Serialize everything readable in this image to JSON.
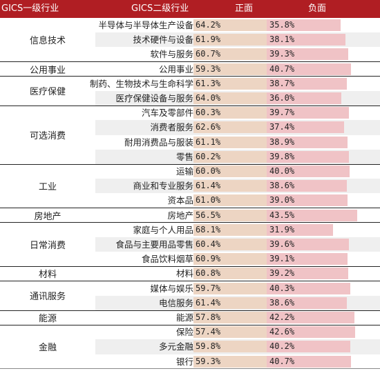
{
  "headers": {
    "level1": "GICS一级行业",
    "level2": "GICS二级行业",
    "positive": "正面",
    "negative": "负面"
  },
  "colors": {
    "header_bg": "#b01e23",
    "positive_bar": "#edd5c3",
    "negative_bar": "#f0c3c6"
  },
  "chart_data": {
    "type": "table",
    "columns": [
      "GICS一级行业",
      "GICS二级行业",
      "正面",
      "负面"
    ],
    "groups": [
      {
        "name": "信息技术",
        "rows": [
          {
            "name": "半导体与半导体生产设备",
            "pos": 64.2,
            "neg": 35.8,
            "pos_label": "64.2%",
            "neg_label": "35.8%"
          },
          {
            "name": "技术硬件与设备",
            "pos": 61.9,
            "neg": 38.1,
            "pos_label": "61.9%",
            "neg_label": "38.1%"
          },
          {
            "name": "软件与服务",
            "pos": 60.7,
            "neg": 39.3,
            "pos_label": "60.7%",
            "neg_label": "39.3%"
          }
        ]
      },
      {
        "name": "公用事业",
        "rows": [
          {
            "name": "公用事业",
            "pos": 59.3,
            "neg": 40.7,
            "pos_label": "59.3%",
            "neg_label": "40.7%"
          }
        ]
      },
      {
        "name": "医疗保健",
        "rows": [
          {
            "name": "制药、生物技术与生命科学",
            "pos": 61.3,
            "neg": 38.7,
            "pos_label": "61.3%",
            "neg_label": "38.7%"
          },
          {
            "name": "医疗保健设备与服务",
            "pos": 64.0,
            "neg": 36.0,
            "pos_label": "64.0%",
            "neg_label": "36.0%"
          }
        ]
      },
      {
        "name": "可选消费",
        "rows": [
          {
            "name": "汽车及零部件",
            "pos": 60.3,
            "neg": 39.7,
            "pos_label": "60.3%",
            "neg_label": "39.7%"
          },
          {
            "name": "消费者服务",
            "pos": 62.6,
            "neg": 37.4,
            "pos_label": "62.6%",
            "neg_label": "37.4%"
          },
          {
            "name": "耐用消费品与服装",
            "pos": 61.1,
            "neg": 38.9,
            "pos_label": "61.1%",
            "neg_label": "38.9%"
          },
          {
            "name": "零售",
            "pos": 60.2,
            "neg": 39.8,
            "pos_label": "60.2%",
            "neg_label": "39.8%"
          }
        ]
      },
      {
        "name": "工业",
        "rows": [
          {
            "name": "运输",
            "pos": 60.0,
            "neg": 40.0,
            "pos_label": "60.0%",
            "neg_label": "40.0%"
          },
          {
            "name": "商业和专业服务",
            "pos": 61.4,
            "neg": 38.6,
            "pos_label": "61.4%",
            "neg_label": "38.6%"
          },
          {
            "name": "资本品",
            "pos": 61.0,
            "neg": 39.0,
            "pos_label": "61.0%",
            "neg_label": "39.0%"
          }
        ]
      },
      {
        "name": "房地产",
        "rows": [
          {
            "name": "房地产",
            "pos": 56.5,
            "neg": 43.5,
            "pos_label": "56.5%",
            "neg_label": "43.5%"
          }
        ]
      },
      {
        "name": "日常消费",
        "rows": [
          {
            "name": "家庭与个人用品",
            "pos": 68.1,
            "neg": 31.9,
            "pos_label": "68.1%",
            "neg_label": "31.9%"
          },
          {
            "name": "食品与主要用品零售",
            "pos": 60.4,
            "neg": 39.6,
            "pos_label": "60.4%",
            "neg_label": "39.6%"
          },
          {
            "name": "食品饮料烟草",
            "pos": 60.9,
            "neg": 39.1,
            "pos_label": "60.9%",
            "neg_label": "39.1%"
          }
        ]
      },
      {
        "name": "材料",
        "rows": [
          {
            "name": "材料",
            "pos": 60.8,
            "neg": 39.2,
            "pos_label": "60.8%",
            "neg_label": "39.2%"
          }
        ]
      },
      {
        "name": "通讯服务",
        "rows": [
          {
            "name": "媒体与娱乐",
            "pos": 59.7,
            "neg": 40.3,
            "pos_label": "59.7%",
            "neg_label": "40.3%"
          },
          {
            "name": "电信服务",
            "pos": 61.4,
            "neg": 38.6,
            "pos_label": "61.4%",
            "neg_label": "38.6%"
          }
        ]
      },
      {
        "name": "能源",
        "rows": [
          {
            "name": "能源",
            "pos": 57.8,
            "neg": 42.2,
            "pos_label": "57.8%",
            "neg_label": "42.2%"
          }
        ]
      },
      {
        "name": "金融",
        "rows": [
          {
            "name": "保险",
            "pos": 57.4,
            "neg": 42.6,
            "pos_label": "57.4%",
            "neg_label": "42.6%"
          },
          {
            "name": "多元金融",
            "pos": 59.8,
            "neg": 40.2,
            "pos_label": "59.8%",
            "neg_label": "40.2%"
          },
          {
            "name": "银行",
            "pos": 59.3,
            "neg": 40.7,
            "pos_label": "59.3%",
            "neg_label": "40.7%"
          }
        ]
      }
    ]
  }
}
